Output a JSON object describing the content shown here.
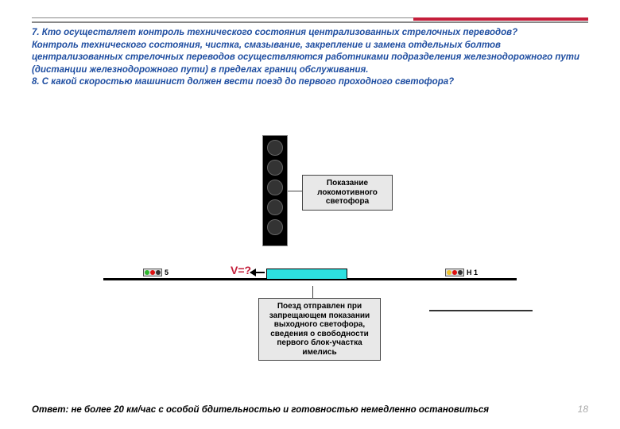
{
  "question7": "7. Кто осуществляет контроль технического состояния централизованных стрелочных переводов?",
  "answer7": "Контроль технического состояния, чистка, смазывание, закрепление и замена отдельных болтов централизованных стрелочных переводов осуществляются работниками подразделения железнодорожного пути (дистанции железнодорожного пути) в пределах границ обслуживания.",
  "question8": "8. С какой скоростью машинист должен вести поезд до первого проходного светофора?",
  "diagram": {
    "label_top": "Показание локомотивного светофора",
    "label_bottom": "Поезд отправлен при запрещающем показании выходного светофора, сведения о свободности первого блок-участка имелись",
    "v_label": "V=?",
    "sig_left_mark": "5",
    "sig_right_mark": "Н 1",
    "train_color": "#2de0e0",
    "signal_bg": "#000000",
    "label_bg": "#e8e8e8"
  },
  "answer8": "Ответ: не более 20 км/час с особой бдительностью и готовностью немедленно остановиться",
  "page_number": "18",
  "colors": {
    "accent_blue": "#1f4ea1",
    "accent_red": "#c41e3a",
    "background": "#ffffff"
  }
}
